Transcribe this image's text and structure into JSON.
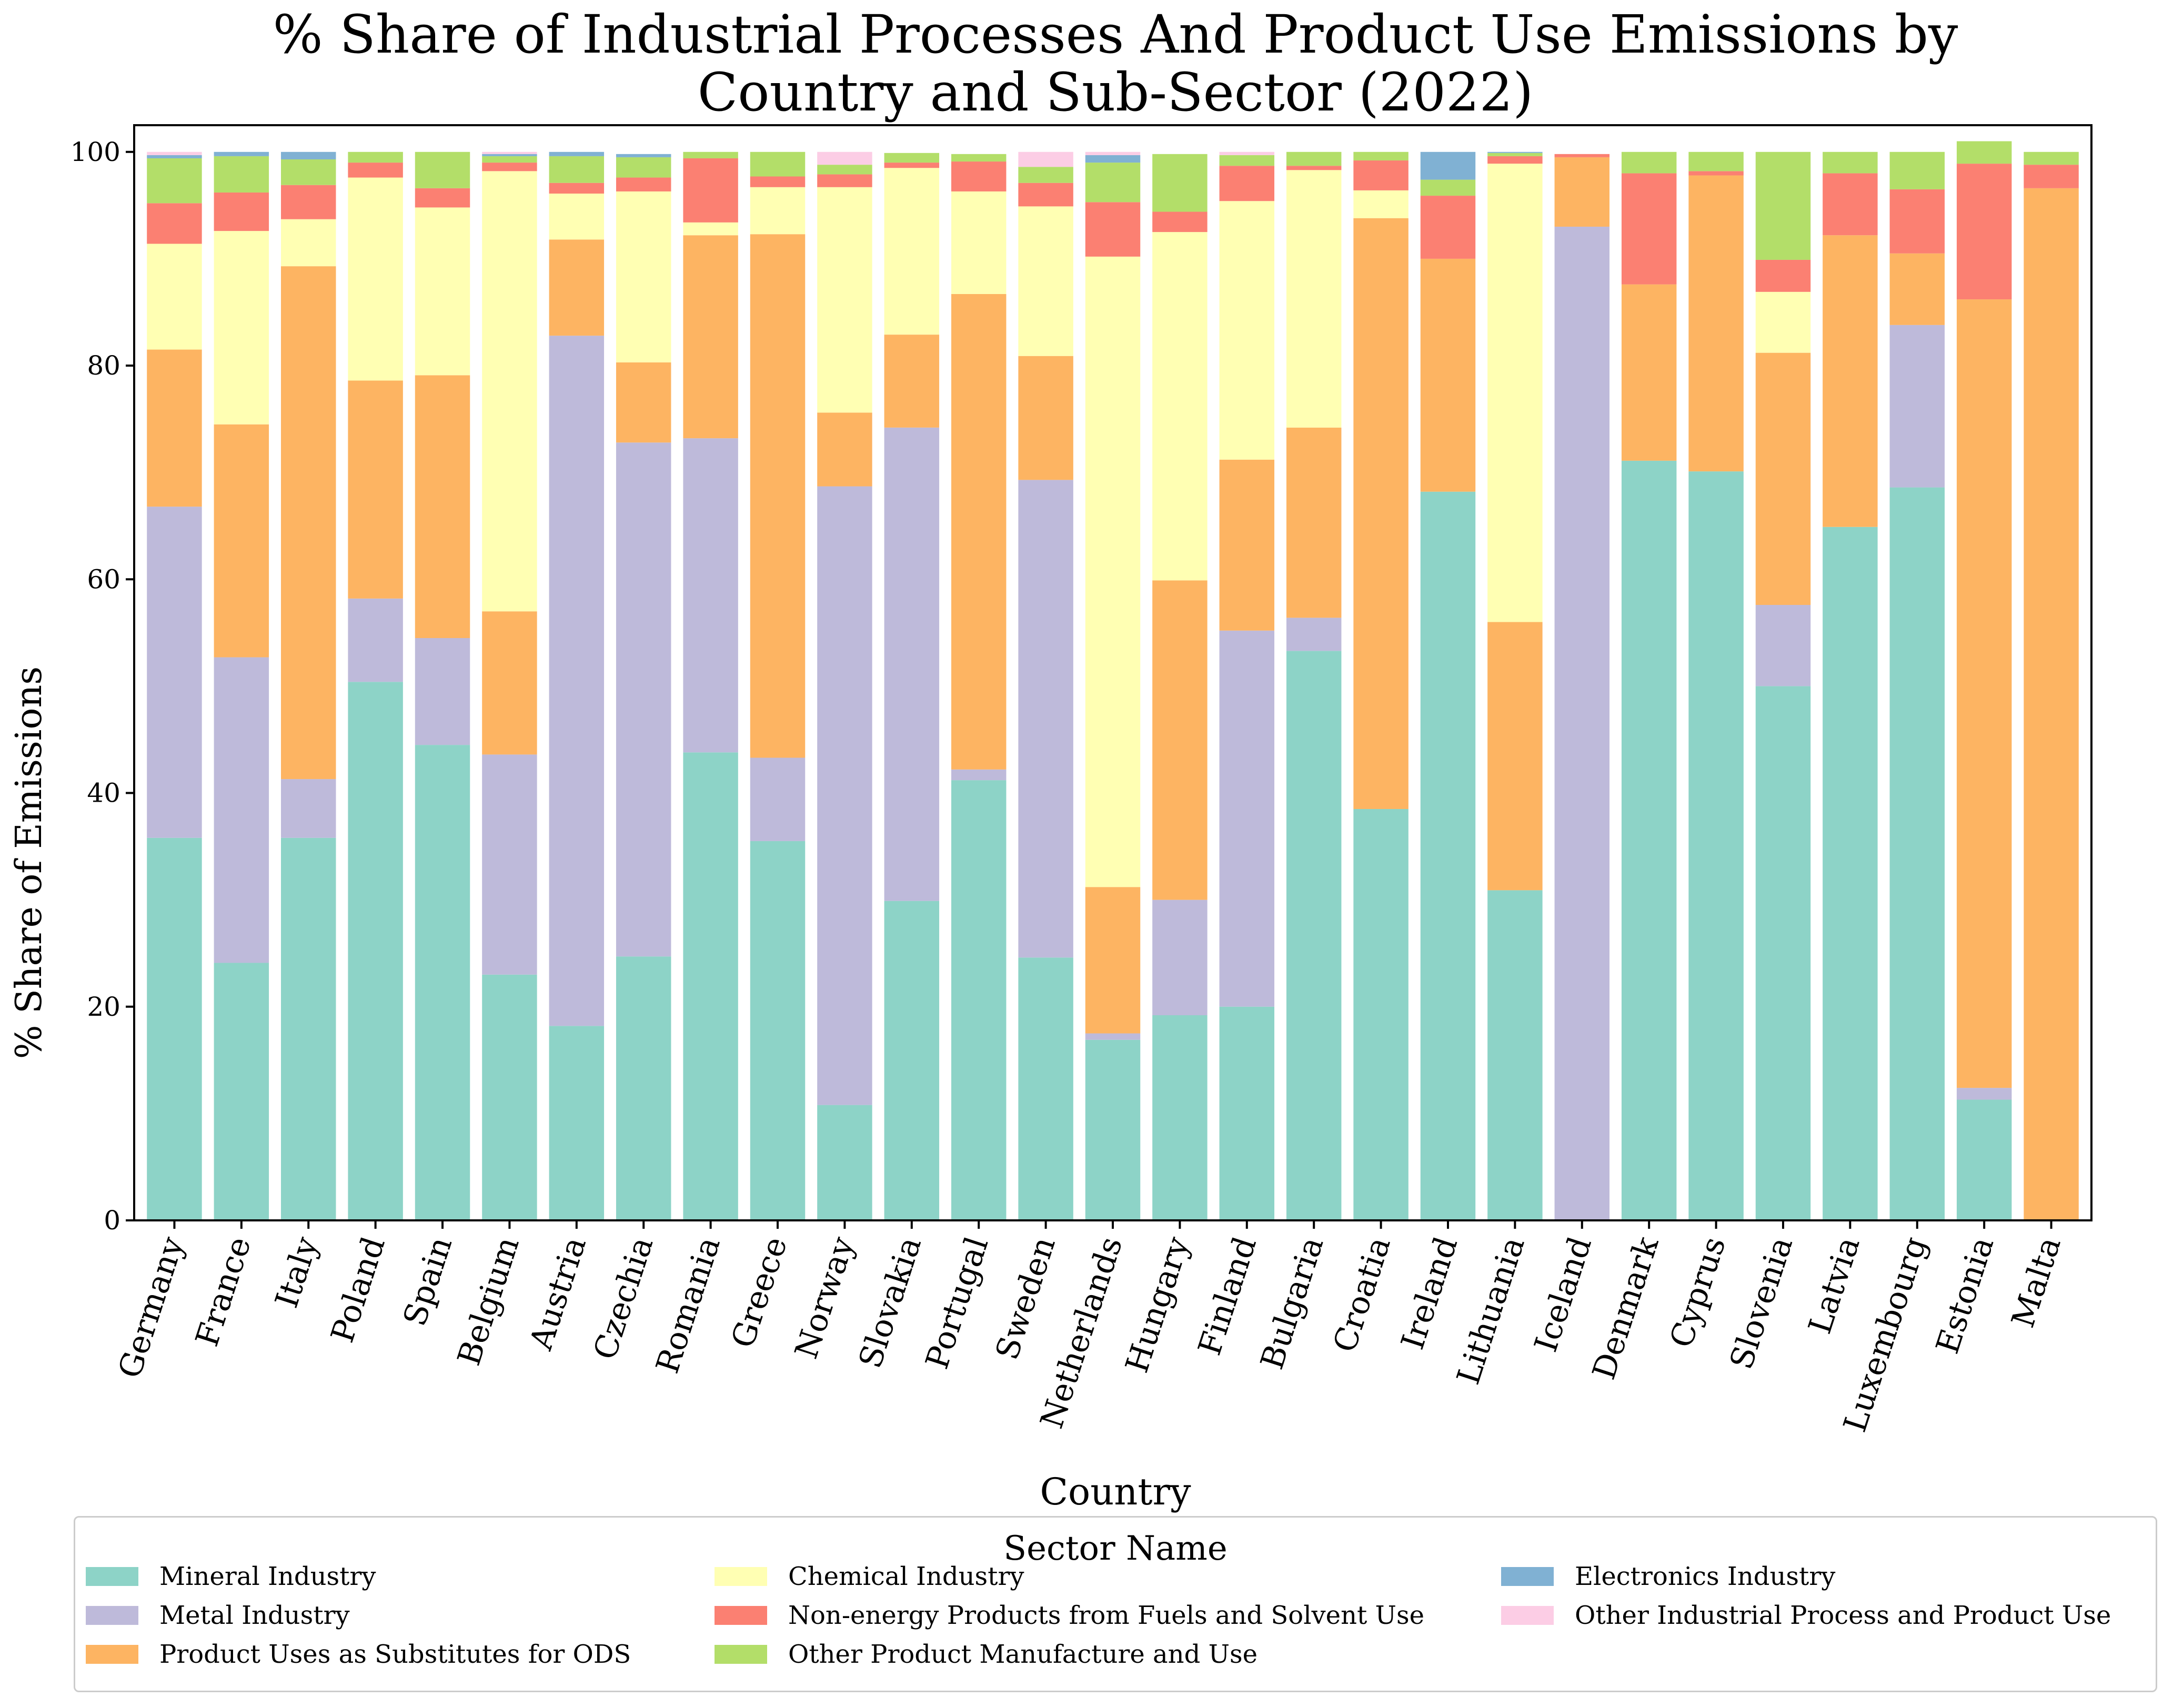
{
  "chart_data": {
    "type": "bar",
    "stacked": true,
    "title": "% Share of Industrial Processes And Product Use Emissions by Country and Sub-Sector (2022)",
    "xlabel": "Country",
    "ylabel": "% Share of Emissions",
    "ylim": [
      0,
      100
    ],
    "yticks": [
      0,
      20,
      40,
      60,
      80,
      100
    ],
    "categories": [
      "Germany",
      "France",
      "Italy",
      "Poland",
      "Spain",
      "Belgium",
      "Austria",
      "Czechia",
      "Romania",
      "Greece",
      "Norway",
      "Slovakia",
      "Portugal",
      "Sweden",
      "Netherlands",
      "Hungary",
      "Finland",
      "Bulgaria",
      "Croatia",
      "Ireland",
      "Lithuania",
      "Iceland",
      "Denmark",
      "Cyprus",
      "Slovenia",
      "Latvia",
      "Luxembourg",
      "Estonia",
      "Malta"
    ],
    "legend_title": "Sector Name",
    "legend_position": "bottom",
    "series": [
      {
        "name": "Mineral Industry",
        "color": "#8dd3c7",
        "values": [
          35.8,
          24.1,
          35.8,
          50.4,
          44.5,
          23.0,
          18.2,
          24.7,
          43.8,
          35.5,
          10.8,
          29.9,
          41.2,
          24.6,
          16.9,
          19.2,
          20.0,
          53.3,
          38.5,
          68.2,
          30.9,
          0,
          71.1,
          70.1,
          50.0,
          64.9,
          68.6,
          11.3,
          0
        ]
      },
      {
        "name": "Metal Industry",
        "color": "#bebada",
        "values": [
          31.0,
          28.6,
          5.5,
          7.8,
          10.0,
          20.6,
          64.6,
          48.1,
          29.4,
          7.8,
          57.9,
          44.3,
          1.0,
          44.7,
          0.6,
          10.8,
          35.2,
          3.1,
          0,
          0,
          0,
          93.0,
          0,
          0,
          7.6,
          0,
          15.2,
          1.1,
          0
        ]
      },
      {
        "name": "Product Uses as Substitutes for ODS",
        "color": "#fdb462",
        "values": [
          14.7,
          21.8,
          48.0,
          20.4,
          24.6,
          13.4,
          9.0,
          7.5,
          19.0,
          49.0,
          6.9,
          8.7,
          44.5,
          11.6,
          13.7,
          29.9,
          16.0,
          17.8,
          55.3,
          21.8,
          25.1,
          6.5,
          16.5,
          27.7,
          23.6,
          27.3,
          6.7,
          73.8,
          96.6
        ]
      },
      {
        "name": "Chemical Industry",
        "color": "#ffffb3",
        "values": [
          9.9,
          18.1,
          4.4,
          19.0,
          15.7,
          41.2,
          4.3,
          16.0,
          1.2,
          4.4,
          21.1,
          15.6,
          9.6,
          14.0,
          59.0,
          32.6,
          24.2,
          24.1,
          2.6,
          0,
          42.9,
          0,
          0,
          0,
          5.7,
          0,
          0,
          0,
          0
        ]
      },
      {
        "name": "Non-energy Products from Fuels and Solvent Use",
        "color": "#fb8072",
        "values": [
          3.8,
          3.6,
          3.2,
          1.4,
          1.8,
          0.8,
          1.0,
          1.3,
          6.0,
          1.0,
          1.2,
          0.5,
          2.8,
          2.2,
          5.1,
          1.9,
          3.3,
          0.4,
          2.8,
          5.9,
          0.7,
          0.3,
          10.4,
          0.4,
          3.0,
          5.8,
          6.0,
          12.7,
          2.2
        ]
      },
      {
        "name": "Other Product Manufacture and Use",
        "color": "#b3de69",
        "values": [
          4.2,
          3.4,
          2.4,
          1.0,
          3.4,
          0.6,
          2.5,
          1.9,
          0.6,
          2.3,
          0.9,
          0.9,
          0.7,
          1.5,
          3.7,
          5.4,
          1.0,
          1.3,
          0.8,
          1.5,
          0.3,
          0,
          2.0,
          1.8,
          10.1,
          2.0,
          3.5,
          2.1,
          1.2
        ]
      },
      {
        "name": "Electronics Industry",
        "color": "#80b1d3",
        "values": [
          0.3,
          0.4,
          0.7,
          0,
          0,
          0.2,
          0.4,
          0.3,
          0,
          0,
          0,
          0,
          0,
          0,
          0.7,
          0,
          0,
          0,
          0,
          2.6,
          0.1,
          0,
          0,
          0,
          0,
          0,
          0,
          0,
          0
        ]
      },
      {
        "name": "Other Industrial Process and Product Use",
        "color": "#fccde5",
        "values": [
          0.3,
          0,
          0,
          0,
          0,
          0.2,
          0,
          0,
          0,
          0,
          1.2,
          0,
          0,
          1.4,
          0.3,
          0,
          0.3,
          0,
          0,
          0,
          0,
          0,
          0,
          0,
          0,
          0,
          0,
          0,
          0
        ]
      }
    ]
  }
}
